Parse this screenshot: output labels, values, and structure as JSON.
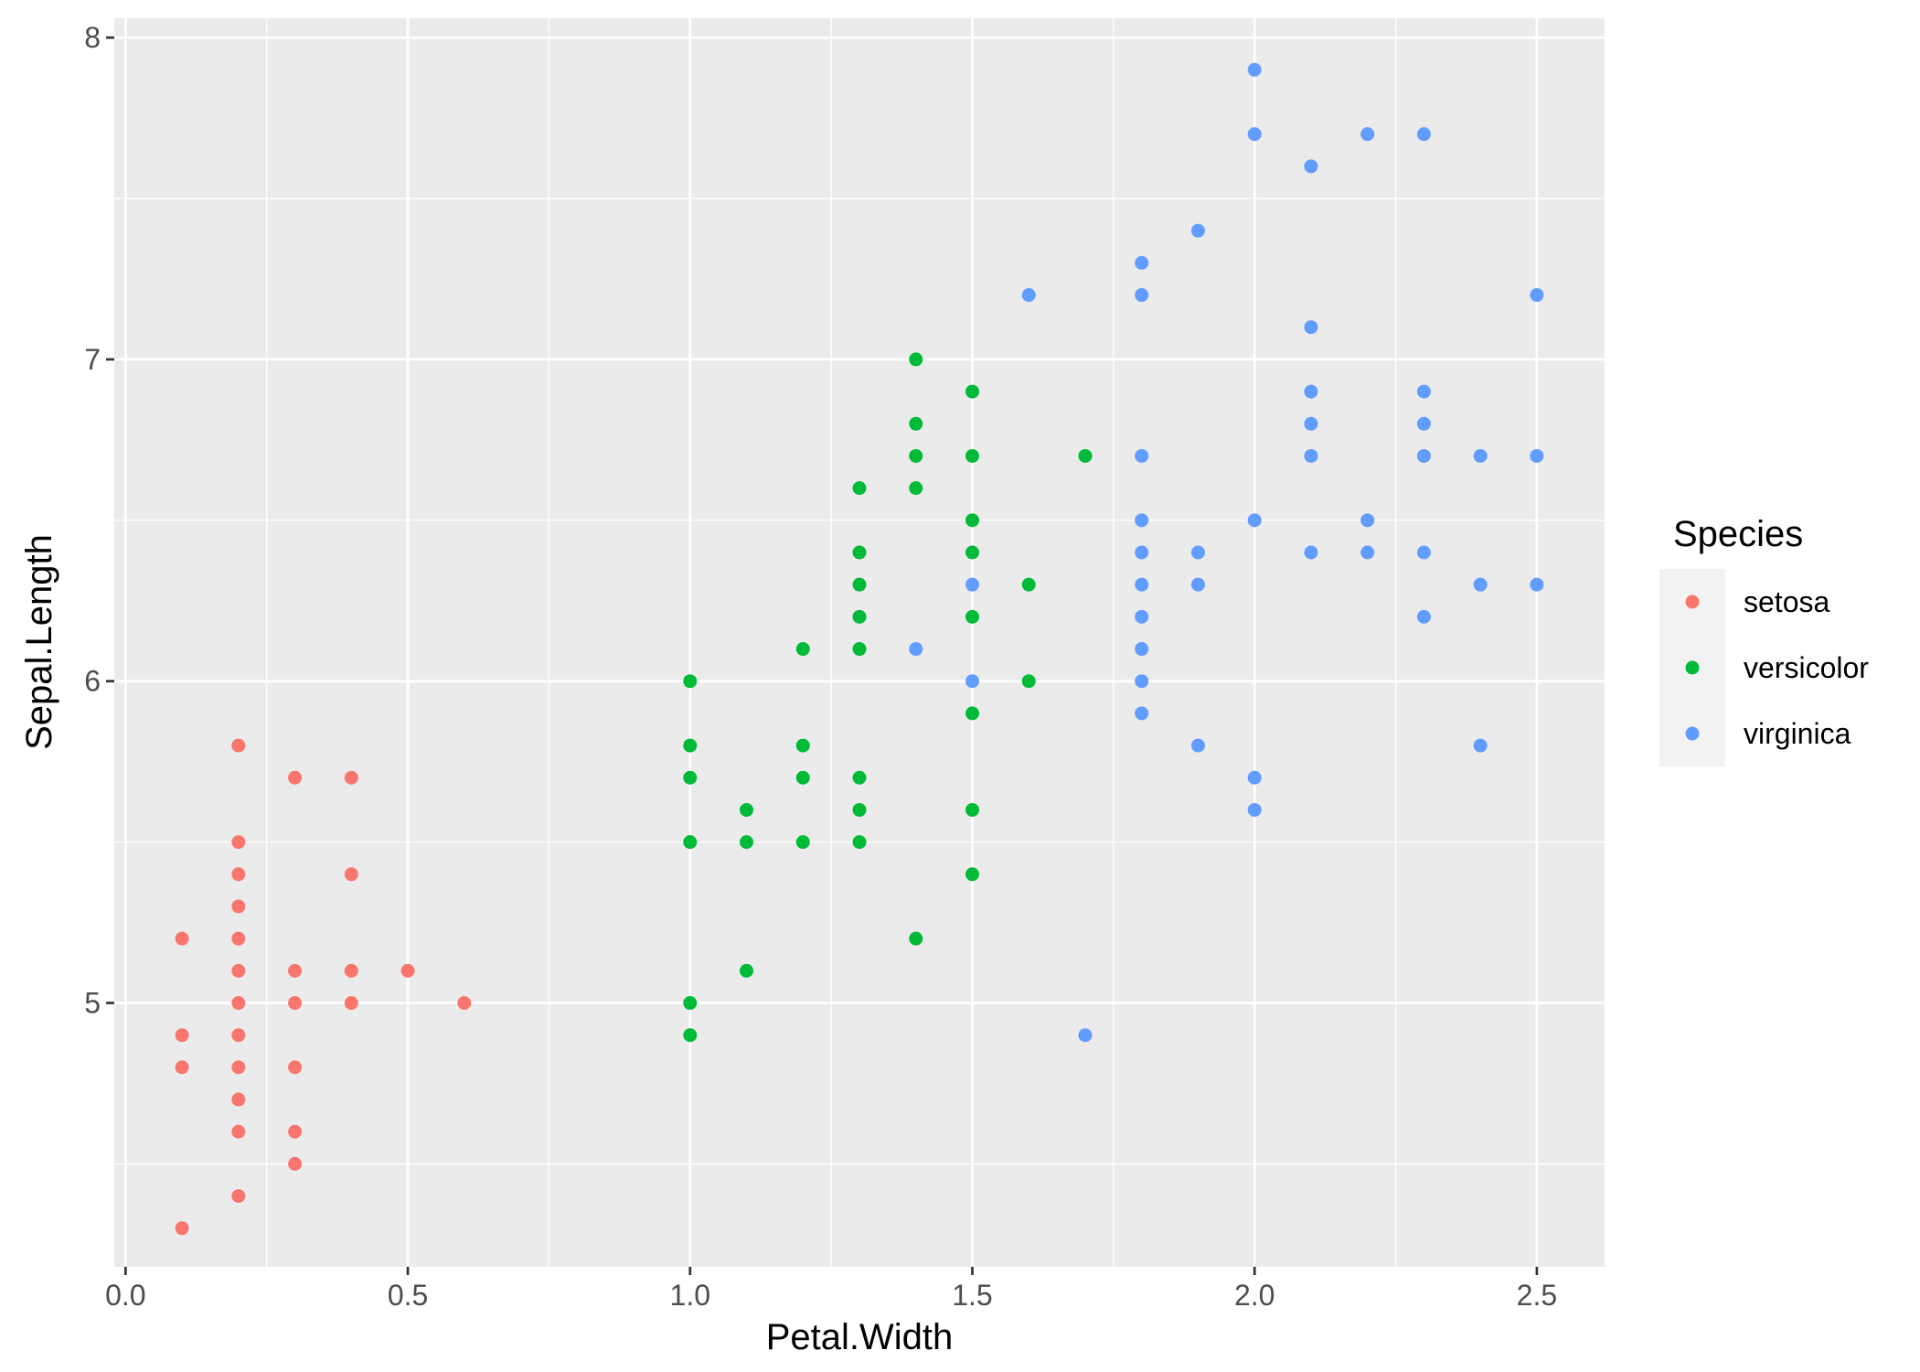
{
  "chart_data": {
    "type": "scatter",
    "title": "",
    "xlabel": "Petal.Width",
    "ylabel": "Sepal.Length",
    "xlim": [
      -0.02,
      2.62
    ],
    "ylim": [
      4.18,
      8.06
    ],
    "x_ticks": [
      0.0,
      0.5,
      1.0,
      1.5,
      2.0,
      2.5
    ],
    "x_tick_labels": [
      "0.0",
      "0.5",
      "1.0",
      "1.5",
      "2.0",
      "2.5"
    ],
    "y_ticks": [
      5,
      6,
      7,
      8
    ],
    "y_tick_labels": [
      "5",
      "6",
      "7",
      "8"
    ],
    "grid": true,
    "legend": {
      "title": "Species",
      "position": "right"
    },
    "series": [
      {
        "name": "setosa",
        "color": "#F8766D",
        "points": [
          [
            0.1,
            5.2
          ],
          [
            0.1,
            4.9
          ],
          [
            0.1,
            4.8
          ],
          [
            0.1,
            4.3
          ],
          [
            0.2,
            5.8
          ],
          [
            0.2,
            5.5
          ],
          [
            0.2,
            5.4
          ],
          [
            0.2,
            5.3
          ],
          [
            0.2,
            5.2
          ],
          [
            0.2,
            5.1
          ],
          [
            0.2,
            5.0
          ],
          [
            0.2,
            4.9
          ],
          [
            0.2,
            4.8
          ],
          [
            0.2,
            4.7
          ],
          [
            0.2,
            4.6
          ],
          [
            0.2,
            4.4
          ],
          [
            0.3,
            5.7
          ],
          [
            0.3,
            5.1
          ],
          [
            0.3,
            5.0
          ],
          [
            0.3,
            4.8
          ],
          [
            0.3,
            4.6
          ],
          [
            0.3,
            4.5
          ],
          [
            0.4,
            5.7
          ],
          [
            0.4,
            5.4
          ],
          [
            0.4,
            5.1
          ],
          [
            0.4,
            5.0
          ],
          [
            0.5,
            5.1
          ],
          [
            0.6,
            5.0
          ]
        ]
      },
      {
        "name": "versicolor",
        "color": "#00BA38",
        "points": [
          [
            1.0,
            6.0
          ],
          [
            1.0,
            5.8
          ],
          [
            1.0,
            5.7
          ],
          [
            1.0,
            5.5
          ],
          [
            1.0,
            5.0
          ],
          [
            1.0,
            4.9
          ],
          [
            1.1,
            5.6
          ],
          [
            1.1,
            5.5
          ],
          [
            1.1,
            5.1
          ],
          [
            1.2,
            6.1
          ],
          [
            1.2,
            5.8
          ],
          [
            1.2,
            5.7
          ],
          [
            1.2,
            5.5
          ],
          [
            1.3,
            6.6
          ],
          [
            1.3,
            6.4
          ],
          [
            1.3,
            6.3
          ],
          [
            1.3,
            6.2
          ],
          [
            1.3,
            6.1
          ],
          [
            1.3,
            5.7
          ],
          [
            1.3,
            5.6
          ],
          [
            1.3,
            5.5
          ],
          [
            1.4,
            7.0
          ],
          [
            1.4,
            6.8
          ],
          [
            1.4,
            6.7
          ],
          [
            1.4,
            6.6
          ],
          [
            1.4,
            5.2
          ],
          [
            1.5,
            6.9
          ],
          [
            1.5,
            6.7
          ],
          [
            1.5,
            6.5
          ],
          [
            1.5,
            6.4
          ],
          [
            1.5,
            6.2
          ],
          [
            1.5,
            5.9
          ],
          [
            1.5,
            5.6
          ],
          [
            1.5,
            5.4
          ],
          [
            1.6,
            6.3
          ],
          [
            1.6,
            6.0
          ],
          [
            1.7,
            6.7
          ]
        ]
      },
      {
        "name": "virginica",
        "color": "#619CFF",
        "points": [
          [
            1.4,
            6.1
          ],
          [
            1.5,
            6.3
          ],
          [
            1.5,
            6.0
          ],
          [
            1.6,
            7.2
          ],
          [
            1.7,
            4.9
          ],
          [
            1.8,
            7.3
          ],
          [
            1.8,
            7.2
          ],
          [
            1.8,
            6.7
          ],
          [
            1.8,
            6.5
          ],
          [
            1.8,
            6.4
          ],
          [
            1.8,
            6.3
          ],
          [
            1.8,
            6.2
          ],
          [
            1.8,
            6.1
          ],
          [
            1.8,
            6.0
          ],
          [
            1.8,
            5.9
          ],
          [
            1.9,
            7.4
          ],
          [
            1.9,
            6.4
          ],
          [
            1.9,
            6.3
          ],
          [
            1.9,
            5.8
          ],
          [
            2.0,
            7.9
          ],
          [
            2.0,
            7.7
          ],
          [
            2.0,
            6.5
          ],
          [
            2.0,
            5.7
          ],
          [
            2.0,
            5.6
          ],
          [
            2.1,
            7.6
          ],
          [
            2.1,
            7.1
          ],
          [
            2.1,
            6.9
          ],
          [
            2.1,
            6.8
          ],
          [
            2.1,
            6.7
          ],
          [
            2.1,
            6.4
          ],
          [
            2.2,
            7.7
          ],
          [
            2.2,
            6.5
          ],
          [
            2.2,
            6.4
          ],
          [
            2.3,
            7.7
          ],
          [
            2.3,
            6.9
          ],
          [
            2.3,
            6.8
          ],
          [
            2.3,
            6.7
          ],
          [
            2.3,
            6.4
          ],
          [
            2.3,
            6.2
          ],
          [
            2.4,
            6.7
          ],
          [
            2.4,
            6.3
          ],
          [
            2.4,
            5.8
          ],
          [
            2.5,
            7.2
          ],
          [
            2.5,
            6.7
          ],
          [
            2.5,
            6.3
          ]
        ]
      }
    ]
  }
}
